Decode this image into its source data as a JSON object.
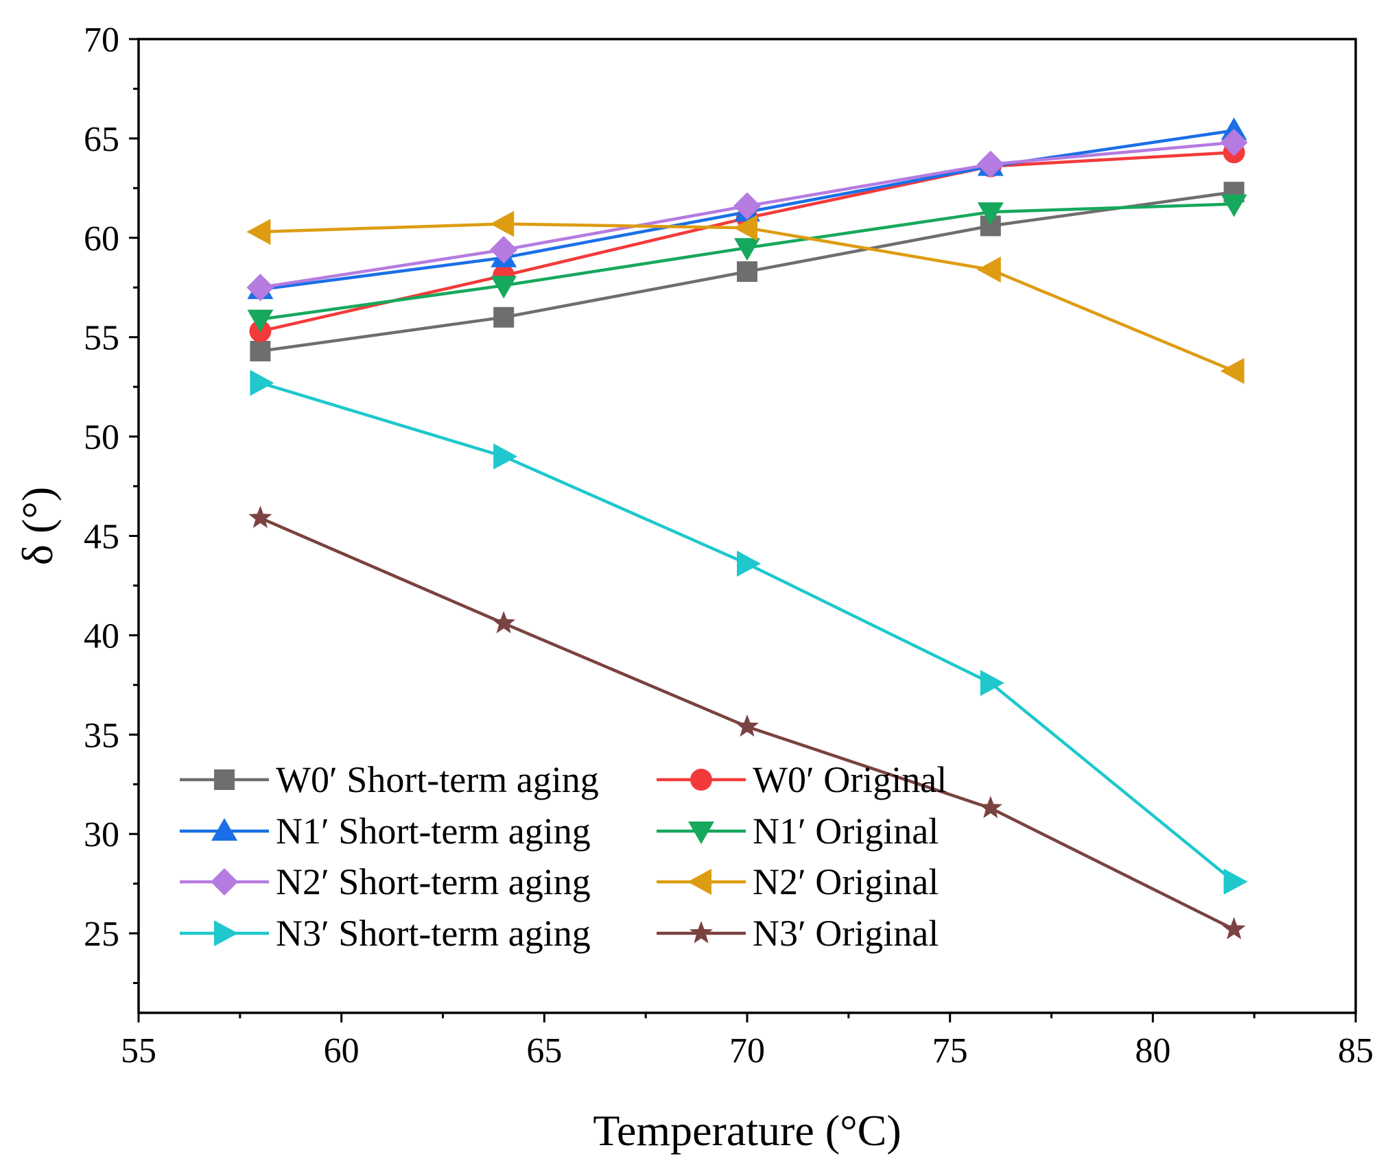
{
  "chart_data": {
    "type": "line",
    "title": "",
    "xlabel": "Temperature (°C)",
    "ylabel": "δ (°)",
    "xlim": [
      55,
      85
    ],
    "ylim": [
      21,
      70
    ],
    "xticks": [
      55,
      60,
      65,
      70,
      75,
      80,
      85
    ],
    "yticks": [
      25,
      30,
      35,
      40,
      45,
      50,
      55,
      60,
      65,
      70
    ],
    "x": [
      58,
      64,
      70,
      76,
      82
    ],
    "grid": false,
    "legend_position": "bottom-left",
    "series": [
      {
        "name": "W0′ Short-term aging",
        "color": "#6e6e6e",
        "marker": "square",
        "values": [
          54.3,
          56.0,
          58.3,
          60.6,
          62.3
        ]
      },
      {
        "name": "W0′ Original",
        "color": "#f23a3a",
        "marker": "circle",
        "values": [
          55.3,
          58.1,
          61.0,
          63.6,
          64.3
        ]
      },
      {
        "name": "N1′ Short-term aging",
        "color": "#1a6fe6",
        "marker": "triangle-up",
        "values": [
          57.4,
          59.0,
          61.3,
          63.6,
          65.4
        ]
      },
      {
        "name": "N1′ Original",
        "color": "#16a85c",
        "marker": "triangle-down",
        "values": [
          55.9,
          57.6,
          59.5,
          61.3,
          61.7
        ]
      },
      {
        "name": "N2′ Short-term aging",
        "color": "#b57be0",
        "marker": "diamond",
        "values": [
          57.5,
          59.4,
          61.6,
          63.7,
          64.8
        ]
      },
      {
        "name": "N2′ Original",
        "color": "#dd9c12",
        "marker": "triangle-left",
        "values": [
          60.3,
          60.7,
          60.5,
          58.4,
          53.3
        ]
      },
      {
        "name": "N3′ Short-term aging",
        "color": "#1ec8cc",
        "marker": "triangle-right",
        "values": [
          52.7,
          49.0,
          43.6,
          37.6,
          27.6
        ]
      },
      {
        "name": "N3′ Original",
        "color": "#7a4240",
        "marker": "star",
        "values": [
          45.9,
          40.6,
          35.4,
          31.3,
          25.2
        ]
      }
    ]
  }
}
